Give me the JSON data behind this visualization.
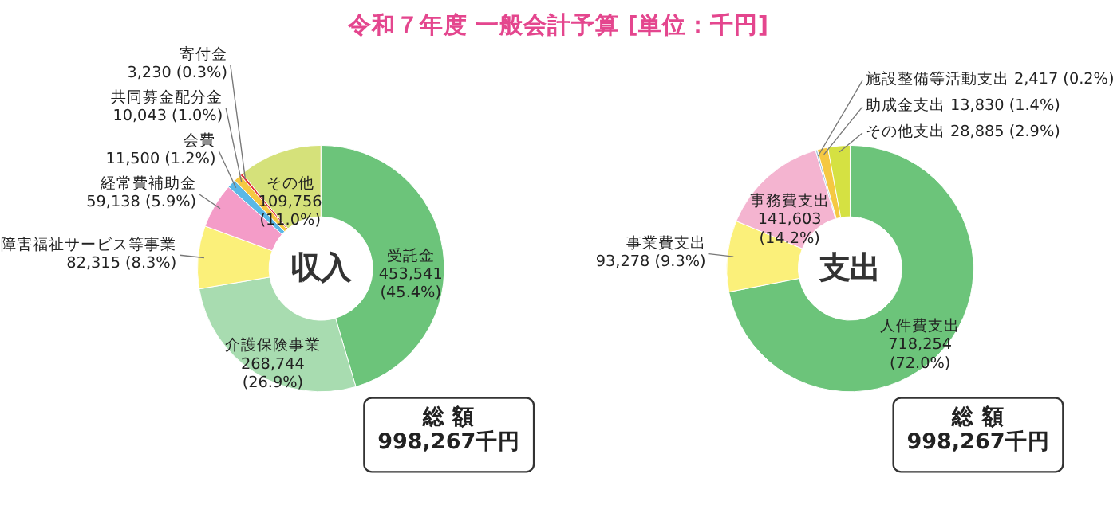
{
  "chart_data": [
    {
      "type": "donut",
      "title": "令和７年度 一般会計予算 [単位：千円]",
      "categories": [
        "受託金",
        "介護保険事業",
        "障害福祉サービス等事業",
        "経常費補助金",
        "会費",
        "共同募金配分金",
        "寄付金",
        "その他"
      ],
      "values": [
        453541,
        268744,
        82315,
        59138,
        11500,
        10043,
        3230,
        109756
      ],
      "value_labels": [
        "453,541 (45.4%)",
        "268,744 (26.9%)",
        "82,315 (8.3%)",
        "59,138 (5.9%)",
        "11,500 (1.2%)",
        "10,043 (1.0%)",
        "3,230 (0.3%)",
        "109,756 (11.0%)"
      ],
      "colors": [
        "#6cc47a",
        "#a8dcb0",
        "#fbf07a",
        "#f49cc8",
        "#5bb8e6",
        "#f5c842",
        "#e0303a",
        "#d5e17a"
      ],
      "legend": false,
      "annotations": [
        "収入",
        "総 額\n998,267千円"
      ]
    },
    {
      "type": "donut",
      "categories": [
        "人件費支出",
        "事業費支出",
        "事務費支出",
        "施設整備等活動支出",
        "助成金支出",
        "その他支出"
      ],
      "values": [
        718254,
        93278,
        141603,
        2417,
        13830,
        28885
      ],
      "value_labels": [
        "718,254 (72.0%)",
        "93,278 (9.3%)",
        "141,603 (14.2%)",
        "2,417 (0.2%)",
        "13,830 (1.4%)",
        "28,885 (2.9%)"
      ],
      "colors": [
        "#6cc47a",
        "#fbf07a",
        "#f4b4d0",
        "#9fc4d8",
        "#f5c842",
        "#d5e142"
      ],
      "legend": false,
      "annotations": [
        "支出",
        "総 額\n998,267千円"
      ]
    }
  ]
}
